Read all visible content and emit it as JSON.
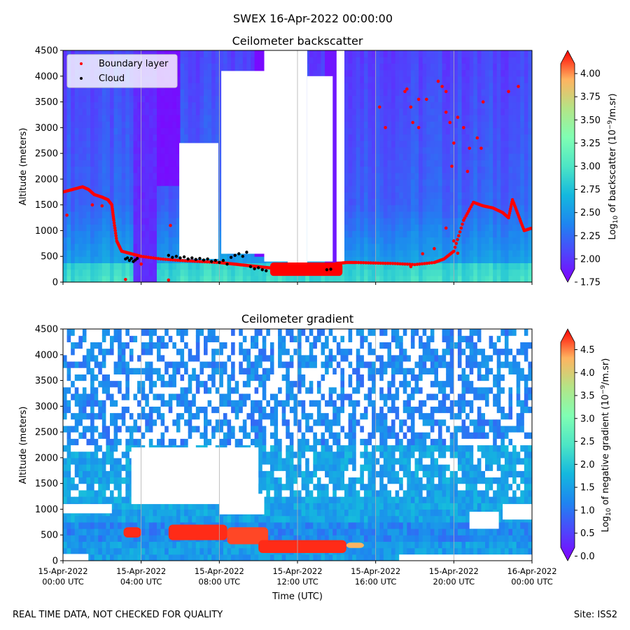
{
  "figure": {
    "suptitle": "SWEX 16-Apr-2022 00:00:00",
    "footer_left": "REAL TIME DATA, NOT CHECKED FOR QUALITY",
    "footer_right": "Site: ISS2"
  },
  "chart_data": [
    {
      "type": "heatmap",
      "title": "Ceilometer backscatter",
      "ylabel": "Altitude (meters)",
      "xlabel": "",
      "ylim": [
        0,
        4500
      ],
      "xlim_hours": [
        0,
        24
      ],
      "yticks": [
        0,
        500,
        1000,
        1500,
        2000,
        2500,
        3000,
        3500,
        4000,
        4500
      ],
      "grid": "vertical lines at x ticks",
      "colorbar": {
        "label_prefix": "Log",
        "label_sub": "10",
        "label_rest": " of backscatter (10",
        "label_sup": "−9",
        "label_end": "/m.sr)",
        "range": [
          1.75,
          4.25
        ],
        "ticks": [
          "1.75",
          "2.00",
          "2.25",
          "2.50",
          "2.75",
          "3.00",
          "3.25",
          "3.50",
          "3.75",
          "4.00"
        ],
        "colormap": "rainbow",
        "extend": "both"
      },
      "legend": {
        "location": "upper-left",
        "entries": [
          {
            "label": "Boundary layer",
            "color": "#ff0000"
          },
          {
            "label": "Cloud",
            "color": "#000000"
          }
        ]
      },
      "blank_regions": [
        {
          "t0": 5.95,
          "t1": 7.95,
          "z0": 450,
          "z1": 2700
        },
        {
          "t0": 8.1,
          "t1": 10.5,
          "z0": 550,
          "z1": 4100
        },
        {
          "t0": 10.3,
          "t1": 11.5,
          "z0": 400,
          "z1": 4500
        },
        {
          "t0": 11.5,
          "t1": 12.5,
          "z0": 380,
          "z1": 4500
        },
        {
          "t0": 12.5,
          "t1": 13.8,
          "z0": 400,
          "z1": 4000
        },
        {
          "t0": 14.0,
          "t1": 14.4,
          "z0": 400,
          "z1": 4500
        }
      ],
      "boundary_layer": {
        "series_t": [
          0,
          0.5,
          1.0,
          1.3,
          1.6,
          2.0,
          2.3,
          2.5,
          2.6,
          2.75,
          3.0,
          3.5,
          4.0,
          5.0,
          6.0,
          7.0,
          8.0,
          8.5,
          9.0,
          9.5,
          10.0,
          10.5,
          11.0,
          11.5,
          12.0,
          12.5,
          13.0,
          13.5,
          14.0,
          14.5,
          15.0,
          16.0,
          17.0,
          18.0,
          19.0,
          19.5,
          20.0,
          20.5,
          21.0,
          21.5,
          22.0,
          22.5,
          22.8,
          23.0,
          23.3,
          23.6,
          24.0
        ],
        "series_z": [
          1750,
          1800,
          1850,
          1800,
          1700,
          1650,
          1600,
          1500,
          1200,
          800,
          600,
          550,
          500,
          450,
          420,
          400,
          380,
          360,
          340,
          320,
          300,
          280,
          260,
          240,
          230,
          230,
          250,
          300,
          360,
          380,
          380,
          370,
          360,
          340,
          380,
          450,
          600,
          1200,
          1550,
          1480,
          1440,
          1350,
          1250,
          1600,
          1300,
          1000,
          1050
        ],
        "scatter": [
          [
            0.2,
            1300
          ],
          [
            1.5,
            1500
          ],
          [
            2.0,
            1480
          ],
          [
            4.0,
            350
          ],
          [
            5.5,
            1100
          ],
          [
            11.2,
            200
          ],
          [
            3.2,
            50
          ],
          [
            5.4,
            40
          ],
          [
            17.8,
            300
          ],
          [
            18.4,
            550
          ],
          [
            19.0,
            650
          ],
          [
            19.6,
            1050
          ],
          [
            20.0,
            800
          ],
          [
            20.2,
            560
          ]
        ],
        "upper_points": [
          [
            17.5,
            3700
          ],
          [
            17.6,
            3750
          ],
          [
            17.8,
            3400
          ],
          [
            17.9,
            3100
          ],
          [
            18.2,
            3550
          ],
          [
            18.6,
            3550
          ],
          [
            18.2,
            3000
          ],
          [
            19.2,
            3900
          ],
          [
            19.4,
            3800
          ],
          [
            19.6,
            3700
          ],
          [
            19.6,
            3300
          ],
          [
            19.8,
            3100
          ],
          [
            20.2,
            3200
          ],
          [
            20.0,
            2700
          ],
          [
            19.9,
            2250
          ],
          [
            20.5,
            3000
          ],
          [
            20.8,
            2600
          ],
          [
            20.7,
            2150
          ],
          [
            21.2,
            2800
          ],
          [
            21.5,
            3500
          ],
          [
            21.4,
            2600
          ],
          [
            22.8,
            3700
          ],
          [
            23.3,
            3800
          ],
          [
            16.2,
            3400
          ],
          [
            16.5,
            3000
          ]
        ]
      },
      "cloud_points_t": [
        3.2,
        3.3,
        3.4,
        3.5,
        3.6,
        3.7,
        3.8,
        5.4,
        5.6,
        5.8,
        6.0,
        6.2,
        6.4,
        6.6,
        6.8,
        7.0,
        7.2,
        7.4,
        7.6,
        7.8,
        8.0,
        8.2,
        8.4,
        8.6,
        8.8,
        9.0,
        9.2,
        9.4,
        9.6,
        9.8,
        10.0,
        10.2,
        10.4,
        13.5,
        13.7
      ],
      "cloud_points_z": [
        450,
        470,
        420,
        460,
        400,
        430,
        460,
        520,
        480,
        500,
        470,
        490,
        450,
        470,
        440,
        460,
        430,
        450,
        400,
        420,
        380,
        420,
        350,
        480,
        520,
        550,
        500,
        580,
        300,
        260,
        280,
        240,
        220,
        240,
        250
      ]
    },
    {
      "type": "heatmap",
      "title": "Ceilometer gradient",
      "ylabel": "Altitude (meters)",
      "xlabel": "Time (UTC)",
      "ylim": [
        0,
        4500
      ],
      "xlim_hours": [
        0,
        24
      ],
      "yticks": [
        0,
        500,
        1000,
        1500,
        2000,
        2500,
        3000,
        3500,
        4000,
        4500
      ],
      "xticks": [
        {
          "hour": 0,
          "line1": "15-Apr-2022",
          "line2": "00:00 UTC"
        },
        {
          "hour": 4,
          "line1": "15-Apr-2022",
          "line2": "04:00 UTC"
        },
        {
          "hour": 8,
          "line1": "15-Apr-2022",
          "line2": "08:00 UTC"
        },
        {
          "hour": 12,
          "line1": "15-Apr-2022",
          "line2": "12:00 UTC"
        },
        {
          "hour": 16,
          "line1": "15-Apr-2022",
          "line2": "16:00 UTC"
        },
        {
          "hour": 20,
          "line1": "15-Apr-2022",
          "line2": "20:00 UTC"
        },
        {
          "hour": 24,
          "line1": "16-Apr-2022",
          "line2": "00:00 UTC"
        }
      ],
      "grid": "vertical lines at x ticks",
      "colorbar": {
        "label_prefix": "Log",
        "label_sub": "10",
        "label_rest": " of negative gradient (10",
        "label_sup": "−9",
        "label_end": "/m.sr)",
        "range": [
          -0.1,
          4.95
        ],
        "ticks": [
          "0.0",
          "0.5",
          "1.0",
          "1.5",
          "2.0",
          "2.5",
          "3.0",
          "3.5",
          "4.0",
          "4.5"
        ],
        "colormap": "rainbow",
        "extend": "both"
      },
      "features": [
        {
          "t0": 3.1,
          "t1": 4.0,
          "z0": 450,
          "z1": 650,
          "value": 4.8
        },
        {
          "t0": 5.4,
          "t1": 8.4,
          "z0": 400,
          "z1": 700,
          "value": 4.8
        },
        {
          "t0": 8.4,
          "t1": 10.5,
          "z0": 320,
          "z1": 650,
          "value": 4.7
        },
        {
          "t0": 10.0,
          "t1": 14.5,
          "z0": 150,
          "z1": 400,
          "value": 4.8
        },
        {
          "t0": 14.5,
          "t1": 15.4,
          "z0": 250,
          "z1": 350,
          "value": 4.3
        }
      ],
      "blank_regions": [
        {
          "t0": 3.5,
          "t1": 10.0,
          "z0": 1100,
          "z1": 2200
        },
        {
          "t0": 8.0,
          "t1": 10.3,
          "z0": 900,
          "z1": 1300
        },
        {
          "t0": 0.0,
          "t1": 2.5,
          "z0": 920,
          "z1": 1100
        },
        {
          "t0": 0.0,
          "t1": 1.3,
          "z0": 0,
          "z1": 130
        },
        {
          "t0": 20.8,
          "t1": 22.3,
          "z0": 620,
          "z1": 950
        },
        {
          "t0": 17.2,
          "t1": 24.0,
          "z0": 0,
          "z1": 120
        },
        {
          "t0": 22.5,
          "t1": 24.0,
          "z0": 800,
          "z1": 1100
        }
      ]
    }
  ]
}
